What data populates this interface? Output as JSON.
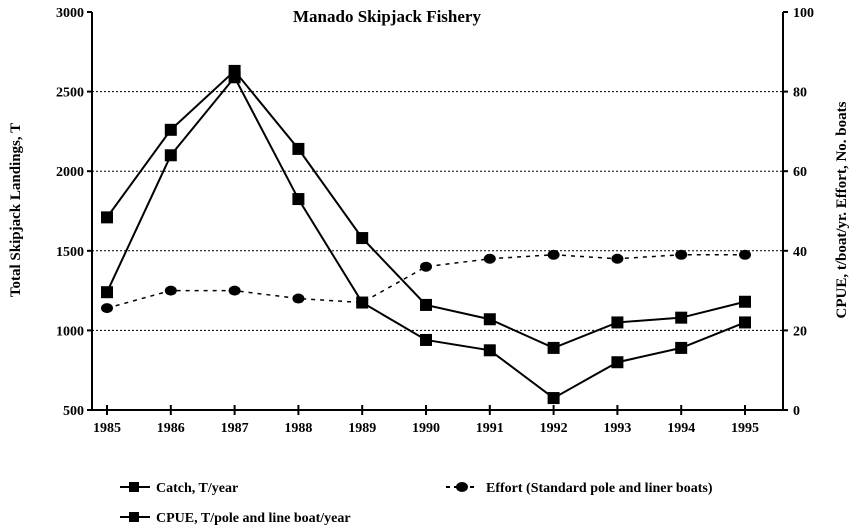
{
  "chart_data": {
    "type": "line",
    "title": "Manado Skipjack Fishery",
    "xlabel": "",
    "ylabel": "Total Skipjack Landings, T",
    "y2label": "CPUE, t/boat/yr.  Effort, No. boats",
    "categories": [
      "1985",
      "1986",
      "1987",
      "1988",
      "1989",
      "1990",
      "1991",
      "1992",
      "1993",
      "1994",
      "1995"
    ],
    "ylim": [
      500,
      3000
    ],
    "y2lim": [
      0,
      100
    ],
    "yticks": [
      "500",
      "1000",
      "1500",
      "2000",
      "2500",
      "3000"
    ],
    "y2ticks": [
      "0",
      "20",
      "40",
      "60",
      "80",
      "100"
    ],
    "grid": true,
    "legend_position": "bottom",
    "series": [
      {
        "name": "Catch, T/year",
        "axis": "left",
        "marker": "square",
        "line": "solid",
        "values": [
          1710,
          2260,
          2630,
          2140,
          1580,
          1160,
          1070,
          890,
          1050,
          1080,
          1180
        ]
      },
      {
        "name": "CPUE, T/pole and line boat/year",
        "axis": "right",
        "marker": "square",
        "line": "solid",
        "values": [
          29.6,
          64,
          83.6,
          53,
          27,
          17.6,
          15,
          3,
          12,
          15.6,
          22
        ]
      },
      {
        "name": "Effort (Standard pole and liner boats)",
        "axis": "right",
        "marker": "circle",
        "line": "dashed",
        "values": [
          25.6,
          30,
          30,
          28,
          27,
          36,
          38,
          39,
          38,
          39,
          39
        ]
      }
    ]
  }
}
